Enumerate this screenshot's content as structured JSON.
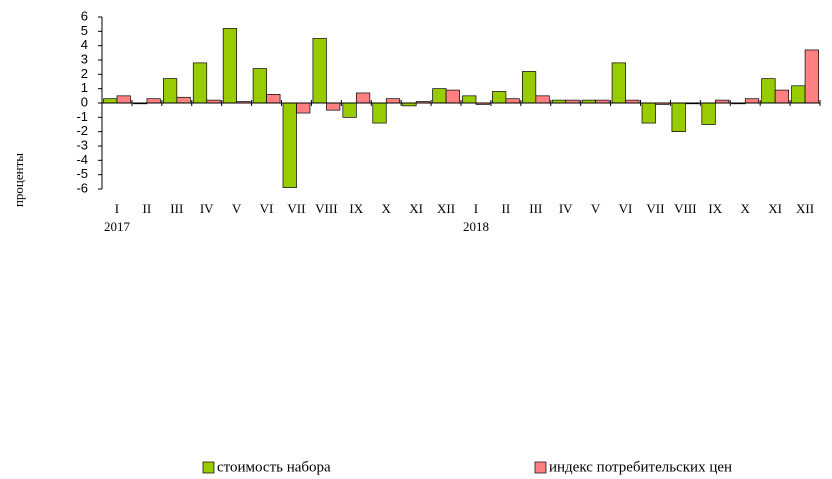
{
  "chart_data": {
    "type": "bar",
    "y_label": "проценты",
    "categories": [
      "I",
      "II",
      "III",
      "IV",
      "V",
      "VI",
      "VII",
      "VIII",
      "IX",
      "X",
      "XI",
      "XII",
      "I",
      "II",
      "III",
      "IV",
      "V",
      "VI",
      "VII",
      "VIII",
      "IX",
      "X",
      "XI",
      "XII"
    ],
    "year_labels": [
      "2017",
      "2018"
    ],
    "series": [
      {
        "name": "стоимость набора",
        "color": "#99cc00",
        "values": [
          0.3,
          0,
          1.7,
          2.8,
          5.2,
          2.4,
          -5.9,
          4.5,
          -1.0,
          -1.4,
          -0.2,
          1.0,
          0.5,
          0.8,
          2.2,
          0.2,
          0.2,
          2.8,
          -1.4,
          -2.0,
          -1.5,
          0,
          1.7,
          1.2
        ]
      },
      {
        "name": "индекс потребительских цен",
        "color": "#ff8080",
        "values": [
          0.5,
          0.3,
          0.4,
          0.2,
          0.1,
          0.6,
          -0.7,
          -0.5,
          0.7,
          0.3,
          0.1,
          0.9,
          -0.1,
          0.3,
          0.5,
          0.2,
          0.2,
          0.2,
          -0.1,
          0.0,
          0.2,
          0.3,
          0.9,
          3.7
        ]
      }
    ],
    "ylim": [
      -6,
      6
    ],
    "yticks": [
      -6,
      -5,
      -4,
      -3,
      -2,
      -1,
      0,
      1,
      2,
      3,
      4,
      5,
      6
    ],
    "grid": false,
    "legend": "bottom"
  }
}
